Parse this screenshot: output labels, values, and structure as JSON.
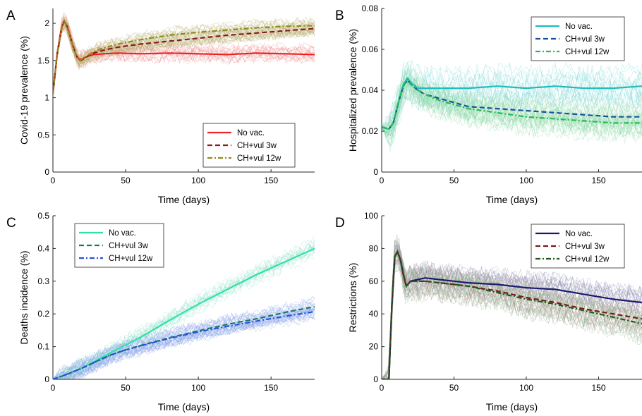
{
  "chart_data": [
    {
      "panel": "A",
      "type": "line",
      "xlabel": "Time (days)",
      "ylabel": "Covid-19 prevalence (%)",
      "xlim": [
        0,
        180
      ],
      "ylim": [
        0,
        2.2
      ],
      "xticks": [
        0,
        50,
        100,
        150
      ],
      "yticks": [
        0,
        0.5,
        1,
        1.5,
        2
      ],
      "ytick_labels": [
        "0",
        "0.5",
        "1",
        "1.5",
        "2"
      ],
      "legend_position": "bottom-right",
      "envelope": {
        "colors": [
          "#f08a8a",
          "#b8b070"
        ],
        "spread": [
          0.14,
          0.12
        ]
      },
      "series": [
        {
          "name": "No vac.",
          "color": "#ee2222",
          "dash": "solid",
          "x": [
            0,
            3,
            6,
            8,
            10,
            13,
            16,
            18,
            20,
            24,
            28,
            35,
            45,
            60,
            80,
            100,
            120,
            140,
            160,
            180
          ],
          "y": [
            1.05,
            1.6,
            1.95,
            2.03,
            1.95,
            1.75,
            1.57,
            1.52,
            1.52,
            1.56,
            1.58,
            1.59,
            1.6,
            1.59,
            1.6,
            1.59,
            1.58,
            1.6,
            1.59,
            1.58
          ]
        },
        {
          "name": "CH+vul 3w",
          "color": "#8b1a1a",
          "dash": "dash",
          "x": [
            0,
            3,
            6,
            8,
            10,
            13,
            16,
            18,
            20,
            24,
            28,
            35,
            45,
            60,
            80,
            100,
            120,
            140,
            160,
            180
          ],
          "y": [
            1.05,
            1.6,
            1.95,
            2.03,
            1.95,
            1.75,
            1.57,
            1.5,
            1.51,
            1.56,
            1.6,
            1.64,
            1.68,
            1.72,
            1.76,
            1.8,
            1.84,
            1.87,
            1.9,
            1.93
          ]
        },
        {
          "name": "CH+vul 12w",
          "color": "#8f8a1a",
          "dash": "dashdot",
          "x": [
            0,
            3,
            6,
            8,
            10,
            13,
            16,
            18,
            20,
            24,
            28,
            35,
            45,
            60,
            80,
            100,
            120,
            140,
            160,
            180
          ],
          "y": [
            1.05,
            1.6,
            1.95,
            2.03,
            1.95,
            1.75,
            1.57,
            1.5,
            1.52,
            1.57,
            1.62,
            1.67,
            1.72,
            1.78,
            1.84,
            1.88,
            1.91,
            1.94,
            1.96,
            1.97
          ]
        }
      ]
    },
    {
      "panel": "B",
      "type": "line",
      "xlabel": "Time (days)",
      "ylabel": "Hospitalized prevalence (%)",
      "xlim": [
        0,
        180
      ],
      "ylim": [
        0,
        0.08
      ],
      "xticks": [
        0,
        50,
        100,
        150
      ],
      "yticks": [
        0,
        0.02,
        0.04,
        0.06,
        0.08
      ],
      "ytick_labels": [
        "0",
        "0.02",
        "0.04",
        "0.06",
        "0.08"
      ],
      "legend_position": "top-right",
      "envelope": {
        "colors": [
          "#7fd6d6",
          "#8fd9a8"
        ],
        "spread": [
          0.011,
          0.009
        ]
      },
      "series": [
        {
          "name": "No vac.",
          "color": "#22bbbb",
          "dash": "solid",
          "x": [
            0,
            5,
            8,
            12,
            15,
            18,
            20,
            25,
            30,
            40,
            50,
            60,
            80,
            100,
            120,
            140,
            160,
            180
          ],
          "y": [
            0.022,
            0.021,
            0.024,
            0.035,
            0.043,
            0.046,
            0.044,
            0.041,
            0.041,
            0.041,
            0.041,
            0.041,
            0.042,
            0.041,
            0.042,
            0.041,
            0.041,
            0.042
          ]
        },
        {
          "name": "CH+vul 3w",
          "color": "#1a4fa0",
          "dash": "dash",
          "x": [
            0,
            5,
            8,
            12,
            15,
            18,
            20,
            25,
            30,
            40,
            50,
            60,
            80,
            100,
            120,
            140,
            160,
            180
          ],
          "y": [
            0.022,
            0.021,
            0.024,
            0.035,
            0.042,
            0.045,
            0.043,
            0.04,
            0.038,
            0.036,
            0.034,
            0.032,
            0.031,
            0.03,
            0.029,
            0.028,
            0.027,
            0.027
          ]
        },
        {
          "name": "CH+vul 12w",
          "color": "#22bb55",
          "dash": "dashdot",
          "x": [
            0,
            5,
            8,
            12,
            15,
            18,
            20,
            25,
            30,
            40,
            50,
            60,
            80,
            100,
            120,
            140,
            160,
            180
          ],
          "y": [
            0.022,
            0.021,
            0.024,
            0.035,
            0.042,
            0.045,
            0.043,
            0.04,
            0.038,
            0.035,
            0.033,
            0.031,
            0.029,
            0.027,
            0.026,
            0.025,
            0.024,
            0.024
          ]
        }
      ]
    },
    {
      "panel": "C",
      "type": "line",
      "xlabel": "Time (days)",
      "ylabel": "Deaths incidence (%)",
      "xlim": [
        0,
        180
      ],
      "ylim": [
        0,
        0.5
      ],
      "xticks": [
        0,
        50,
        100,
        150
      ],
      "yticks": [
        0,
        0.1,
        0.2,
        0.3,
        0.4,
        0.5
      ],
      "ytick_labels": [
        "0",
        "0.1",
        "0.2",
        "0.3",
        "0.4",
        "0.5"
      ],
      "legend_position": "top-left",
      "envelope": {
        "colors": [
          "#8fe0c8",
          "#8aa4e8"
        ],
        "spread": [
          0.035,
          0.03
        ]
      },
      "series": [
        {
          "name": "No vac.",
          "color": "#33e0aa",
          "dash": "solid",
          "x": [
            0,
            10,
            20,
            30,
            40,
            50,
            60,
            80,
            100,
            120,
            140,
            160,
            180
          ],
          "y": [
            0,
            0.016,
            0.035,
            0.058,
            0.082,
            0.105,
            0.128,
            0.18,
            0.23,
            0.275,
            0.32,
            0.36,
            0.4
          ]
        },
        {
          "name": "CH+vul 3w",
          "color": "#1a7a60",
          "dash": "dash",
          "x": [
            0,
            10,
            20,
            30,
            40,
            50,
            60,
            80,
            100,
            120,
            140,
            160,
            180
          ],
          "y": [
            0,
            0.016,
            0.034,
            0.055,
            0.075,
            0.09,
            0.103,
            0.127,
            0.148,
            0.168,
            0.185,
            0.205,
            0.222
          ]
        },
        {
          "name": "CH+vul 12w",
          "color": "#2255dd",
          "dash": "dashdot",
          "x": [
            0,
            10,
            20,
            30,
            40,
            50,
            60,
            80,
            100,
            120,
            140,
            160,
            180
          ],
          "y": [
            0,
            0.016,
            0.034,
            0.055,
            0.075,
            0.09,
            0.102,
            0.125,
            0.145,
            0.162,
            0.178,
            0.193,
            0.207
          ]
        }
      ]
    },
    {
      "panel": "D",
      "type": "line",
      "xlabel": "Time (days)",
      "ylabel": "Restrictions (%)",
      "xlim": [
        0,
        180
      ],
      "ylim": [
        0,
        100
      ],
      "xticks": [
        0,
        50,
        100,
        150
      ],
      "yticks": [
        0,
        20,
        40,
        60,
        80,
        100
      ],
      "ytick_labels": [
        "0",
        "20",
        "40",
        "60",
        "80",
        "100"
      ],
      "legend_position": "top-right",
      "envelope": {
        "colors": [
          "#8a8ab0",
          "#b08a8a",
          "#8ab08a"
        ],
        "spread": [
          10,
          11,
          12
        ]
      },
      "series": [
        {
          "name": "No vac.",
          "color": "#1a1a70",
          "dash": "solid",
          "x": [
            0,
            3,
            5,
            7,
            9,
            11,
            13,
            15,
            17,
            20,
            25,
            30,
            40,
            50,
            60,
            80,
            100,
            120,
            140,
            160,
            180
          ],
          "y": [
            0,
            0,
            0,
            45,
            75,
            78,
            73,
            64,
            57,
            60,
            61,
            62,
            61,
            60,
            59,
            58,
            56,
            55,
            52,
            49,
            47
          ]
        },
        {
          "name": "CH+vul 3w",
          "color": "#7a1a1a",
          "dash": "dash",
          "x": [
            0,
            3,
            5,
            7,
            9,
            11,
            13,
            15,
            17,
            20,
            25,
            30,
            40,
            50,
            60,
            80,
            100,
            120,
            140,
            160,
            180
          ],
          "y": [
            0,
            0,
            0,
            45,
            75,
            78,
            73,
            64,
            57,
            60,
            60,
            60,
            59,
            58,
            57,
            54,
            50,
            47,
            43,
            40,
            37
          ]
        },
        {
          "name": "CH+vul 12w",
          "color": "#1a5a1a",
          "dash": "dashdot",
          "x": [
            0,
            3,
            5,
            7,
            9,
            11,
            13,
            15,
            17,
            20,
            25,
            30,
            40,
            50,
            60,
            80,
            100,
            120,
            140,
            160,
            180
          ],
          "y": [
            0,
            0,
            0,
            45,
            75,
            78,
            73,
            64,
            57,
            60,
            60,
            60,
            59,
            58,
            57,
            53,
            49,
            46,
            42,
            38,
            34
          ]
        }
      ]
    }
  ]
}
